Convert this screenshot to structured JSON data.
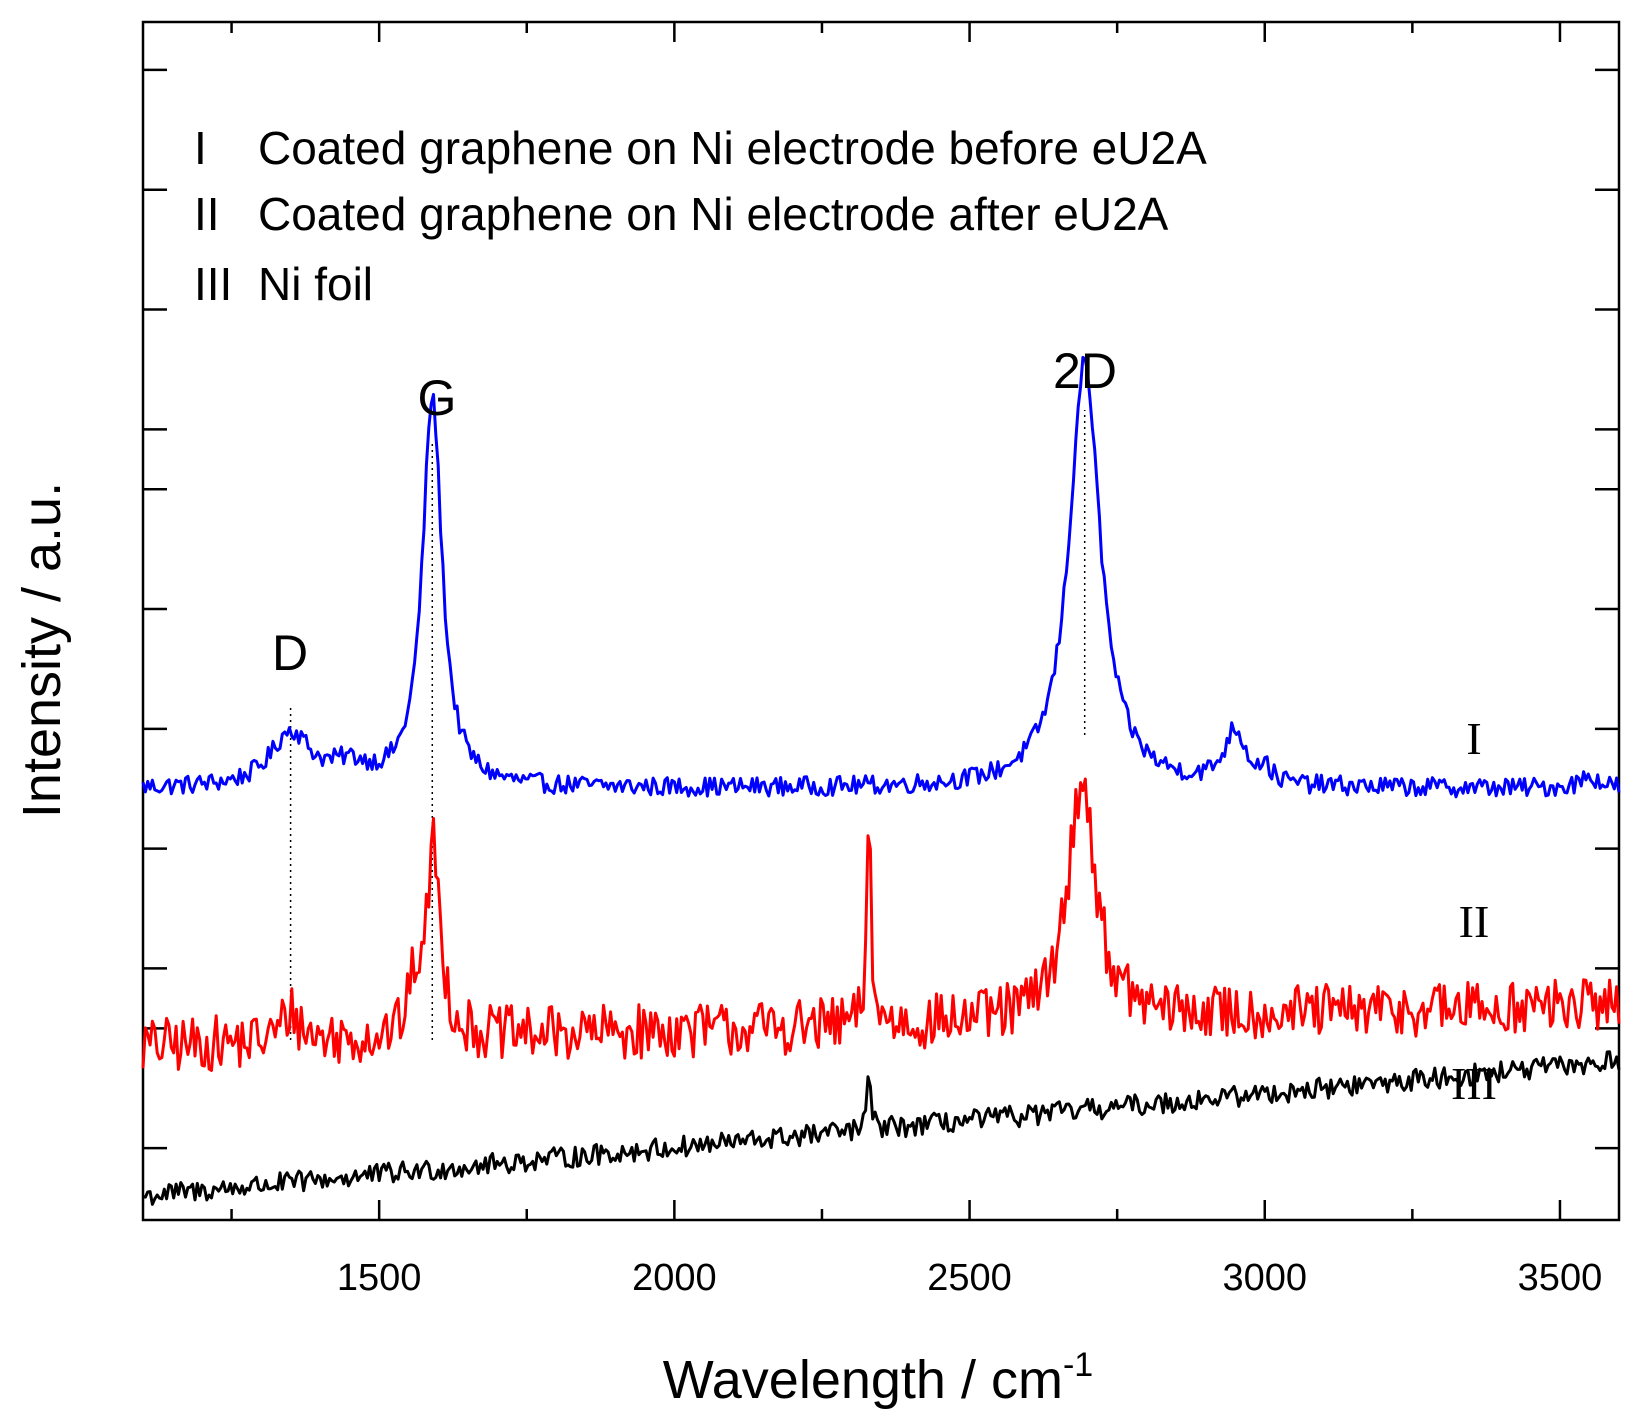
{
  "chart_data": {
    "type": "line",
    "xlabel": "Wavelength / cm",
    "xlabel_superscript": "-1",
    "ylabel": "Intensity / a.u.",
    "xlim": [
      1100,
      3600
    ],
    "ylim": [
      0,
      100
    ],
    "xticks": [
      1500,
      2000,
      2500,
      3000,
      3500
    ],
    "xtick_labels": [
      "1500",
      "2000",
      "2500",
      "3000",
      "3500"
    ],
    "minor_xticks": [
      1250,
      1750,
      2250,
      2750,
      3250
    ],
    "yticks": [
      6,
      16,
      21,
      31,
      41,
      51,
      61,
      66,
      76,
      86,
      96
    ],
    "grid": false,
    "legend": [
      {
        "id": "I",
        "label": "Coated graphene on Ni electrode before eU2A"
      },
      {
        "id": "II",
        "label": "Coated graphene on Ni electrode after eU2A"
      },
      {
        "id": "III",
        "label": "Ni foil"
      }
    ],
    "peak_labels": [
      {
        "label": "D",
        "x": 1350
      },
      {
        "label": "G",
        "x": 1590
      },
      {
        "label": "2D",
        "x": 2695
      }
    ],
    "series": [
      {
        "name": "I",
        "color": "#0000ff",
        "baseline": 36,
        "noise": 0.8,
        "slope": 0,
        "peaks": [
          {
            "x": 1350,
            "height": 4.5,
            "width": 40
          },
          {
            "x": 1450,
            "height": 1.5,
            "width": 40
          },
          {
            "x": 1590,
            "height": 32.5,
            "width": 20
          },
          {
            "x": 2695,
            "height": 35.5,
            "width": 32
          },
          {
            "x": 2950,
            "height": 4.5,
            "width": 22
          },
          {
            "x": 3000,
            "height": 1.2,
            "width": 12
          },
          {
            "x": 3550,
            "height": 1.0,
            "width": 20
          }
        ]
      },
      {
        "name": "II",
        "color": "#ff0000",
        "baseline": 14.5,
        "noise": 2.3,
        "slope": 0.0014,
        "peaks": [
          {
            "x": 1350,
            "height": 2.5,
            "width": 18
          },
          {
            "x": 1560,
            "height": 4,
            "width": 10
          },
          {
            "x": 1592,
            "height": 16,
            "width": 14
          },
          {
            "x": 2330,
            "height": 18,
            "width": 4
          },
          {
            "x": 2690,
            "height": 20,
            "width": 28
          }
        ]
      },
      {
        "name": "III",
        "color": "#000000",
        "baseline": 2,
        "noise": 0.9,
        "slope": 0.0045,
        "peaks": [
          {
            "x": 2330,
            "height": 4.5,
            "width": 4
          }
        ]
      }
    ],
    "series_labels": [
      "I",
      "II",
      "III"
    ]
  }
}
